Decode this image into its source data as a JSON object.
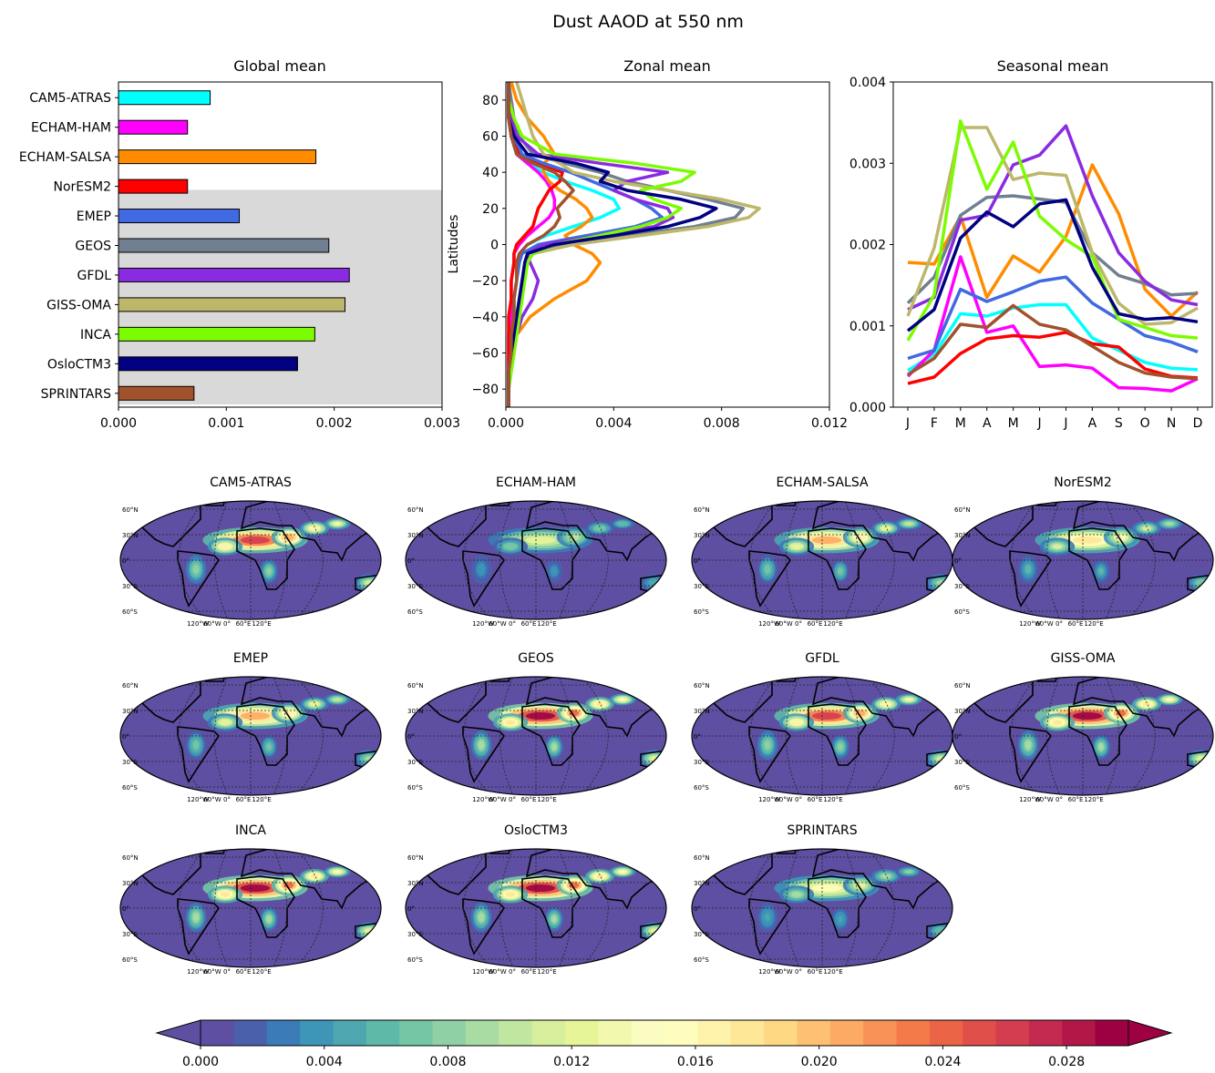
{
  "figure": {
    "title": "Dust AAOD at 550 nm"
  },
  "chart_data": [
    {
      "id": "global",
      "type": "bar",
      "orientation": "horizontal",
      "title": "Global mean",
      "xlim": [
        0,
        0.003
      ],
      "xticks": [
        "0.000",
        "0.001",
        "0.002",
        "0.003"
      ],
      "shaded_categories": [
        "EMEP",
        "GEOS",
        "GFDL",
        "GISS-OMA",
        "INCA",
        "OsloCTM3",
        "SPRINTARS"
      ],
      "categories": [
        "CAM5-ATRAS",
        "ECHAM-HAM",
        "ECHAM-SALSA",
        "NorESM2",
        "EMEP",
        "GEOS",
        "GFDL",
        "GISS-OMA",
        "INCA",
        "OsloCTM3",
        "SPRINTARS"
      ],
      "values": [
        0.00085,
        0.00064,
        0.00183,
        0.00064,
        0.00112,
        0.00195,
        0.00214,
        0.0021,
        0.00182,
        0.00166,
        0.0007
      ],
      "colors": [
        "#00ffff",
        "#ff00ff",
        "#ff8c00",
        "#ff0000",
        "#4169e1",
        "#708090",
        "#8a2be2",
        "#bdb76b",
        "#7cfc00",
        "#000080",
        "#a0522d"
      ]
    },
    {
      "id": "zonal",
      "type": "line",
      "title": "Zonal mean",
      "ylabel": "Latitudes",
      "xlim": [
        0,
        0.012
      ],
      "ylim": [
        -90,
        90
      ],
      "xticks": [
        "0.000",
        "0.004",
        "0.008",
        "0.012"
      ],
      "yticks": [
        "80",
        "60",
        "40",
        "20",
        "0",
        "−20",
        "−40",
        "−60",
        "−80"
      ],
      "lat": [
        -90,
        -80,
        -70,
        -60,
        -50,
        -40,
        -30,
        -20,
        -10,
        -5,
        0,
        5,
        10,
        15,
        20,
        25,
        30,
        35,
        40,
        45,
        50,
        60,
        70,
        80,
        90
      ],
      "series": [
        {
          "model": "CAM5-ATRAS",
          "color": "#00ffff",
          "values": [
            0.0001,
            0.0001,
            0.0001,
            0.0002,
            0.0002,
            0.0003,
            0.0003,
            0.0004,
            0.0004,
            0.0005,
            0.0008,
            0.0015,
            0.0025,
            0.0035,
            0.0042,
            0.004,
            0.0032,
            0.0022,
            0.0014,
            0.0008,
            0.0004,
            0.0002,
            0.0001,
            0.0001,
            0.0001
          ]
        },
        {
          "model": "ECHAM-HAM",
          "color": "#ff00ff",
          "values": [
            0.0001,
            0.0001,
            0.0001,
            0.0001,
            0.0001,
            0.0002,
            0.0002,
            0.0002,
            0.0003,
            0.0003,
            0.0005,
            0.0008,
            0.0012,
            0.0016,
            0.0018,
            0.0018,
            0.0017,
            0.0015,
            0.0012,
            0.0008,
            0.0004,
            0.0002,
            0.0001,
            0.0001,
            0.0001
          ]
        },
        {
          "model": "ECHAM-SALSA",
          "color": "#ff8c00",
          "values": [
            0.0001,
            0.0001,
            0.0001,
            0.0002,
            0.0004,
            0.0009,
            0.0018,
            0.003,
            0.0035,
            0.0032,
            0.0025,
            0.0022,
            0.0028,
            0.0032,
            0.003,
            0.0026,
            0.002,
            0.0016,
            0.0014,
            0.0014,
            0.0018,
            0.0014,
            0.0008,
            0.0004,
            0.0002
          ]
        },
        {
          "model": "NorESM2",
          "color": "#ff0000",
          "values": [
            0.0001,
            0.0001,
            0.0001,
            0.0001,
            0.0001,
            0.0001,
            0.0002,
            0.0002,
            0.0003,
            0.0003,
            0.0004,
            0.0007,
            0.001,
            0.0011,
            0.0012,
            0.0014,
            0.0016,
            0.002,
            0.0021,
            0.0012,
            0.0005,
            0.0002,
            0.0001,
            0.0001,
            0.0001
          ]
        },
        {
          "model": "EMEP",
          "color": "#4169e1",
          "values": [
            0.0001,
            0.0001,
            0.0001,
            0.0002,
            0.0002,
            0.0003,
            0.0003,
            0.0004,
            0.0005,
            0.0006,
            0.0012,
            0.003,
            0.0048,
            0.0058,
            0.0054,
            0.0048,
            0.004,
            0.0032,
            0.0024,
            0.0014,
            0.0006,
            0.0003,
            0.0001,
            0.0001,
            0.0001
          ]
        },
        {
          "model": "GEOS",
          "color": "#708090",
          "values": [
            0.0001,
            0.0001,
            0.0001,
            0.0002,
            0.0003,
            0.0004,
            0.0005,
            0.0006,
            0.0008,
            0.001,
            0.002,
            0.0045,
            0.007,
            0.0085,
            0.0088,
            0.0075,
            0.006,
            0.0045,
            0.0035,
            0.0022,
            0.001,
            0.0005,
            0.0003,
            0.0002,
            0.0001
          ]
        },
        {
          "model": "GFDL",
          "color": "#8a2be2",
          "values": [
            0.0001,
            0.0001,
            0.0002,
            0.0003,
            0.0004,
            0.0006,
            0.001,
            0.0012,
            0.0009,
            0.0008,
            0.0014,
            0.0035,
            0.0055,
            0.0062,
            0.006,
            0.0048,
            0.004,
            0.0045,
            0.006,
            0.0035,
            0.0012,
            0.0004,
            0.0002,
            0.0001,
            0.0001
          ]
        },
        {
          "model": "GISS-OMA",
          "color": "#bdb76b",
          "values": [
            0.0001,
            0.0001,
            0.0002,
            0.0003,
            0.0004,
            0.0005,
            0.0006,
            0.0007,
            0.0008,
            0.001,
            0.0025,
            0.005,
            0.0075,
            0.009,
            0.0094,
            0.008,
            0.006,
            0.004,
            0.0025,
            0.002,
            0.0014,
            0.001,
            0.0008,
            0.0006,
            0.0004
          ]
        },
        {
          "model": "INCA",
          "color": "#7cfc00",
          "values": [
            0.0001,
            0.0001,
            0.0002,
            0.0003,
            0.0004,
            0.0005,
            0.0006,
            0.0007,
            0.0008,
            0.001,
            0.0018,
            0.0035,
            0.005,
            0.006,
            0.0065,
            0.0055,
            0.005,
            0.0065,
            0.007,
            0.0048,
            0.0018,
            0.0006,
            0.0003,
            0.0001,
            0.0001
          ]
        },
        {
          "model": "OsloCTM3",
          "color": "#000080",
          "values": [
            0.0001,
            0.0001,
            0.0001,
            0.0002,
            0.0003,
            0.0004,
            0.0005,
            0.0006,
            0.0007,
            0.0008,
            0.0018,
            0.004,
            0.006,
            0.0072,
            0.0078,
            0.0065,
            0.0045,
            0.0035,
            0.0038,
            0.0026,
            0.0008,
            0.0003,
            0.0001,
            0.0001,
            0.0001
          ]
        },
        {
          "model": "SPRINTARS",
          "color": "#a0522d",
          "values": [
            0.0001,
            0.0001,
            0.0001,
            0.0002,
            0.0002,
            0.0003,
            0.0003,
            0.0004,
            0.0004,
            0.0005,
            0.0008,
            0.0014,
            0.0018,
            0.002,
            0.0019,
            0.0022,
            0.0025,
            0.0022,
            0.0018,
            0.001,
            0.0004,
            0.0002,
            0.0001,
            0.0001,
            0.0001
          ]
        }
      ]
    },
    {
      "id": "seasonal",
      "type": "line",
      "title": "Seasonal mean",
      "ylim": [
        0,
        0.004
      ],
      "yticks": [
        "0.000",
        "0.001",
        "0.002",
        "0.003",
        "0.004"
      ],
      "categories": [
        "J",
        "F",
        "M",
        "A",
        "M",
        "J",
        "J",
        "A",
        "S",
        "O",
        "N",
        "D"
      ],
      "series": [
        {
          "model": "CAM5-ATRAS",
          "color": "#00ffff",
          "values": [
            0.00045,
            0.00065,
            0.00115,
            0.00112,
            0.00122,
            0.00126,
            0.00126,
            0.00085,
            0.0007,
            0.00055,
            0.00048,
            0.00046
          ]
        },
        {
          "model": "ECHAM-HAM",
          "color": "#ff00ff",
          "values": [
            0.00038,
            0.0007,
            0.00185,
            0.00092,
            0.001,
            0.0005,
            0.00052,
            0.00048,
            0.00024,
            0.00023,
            0.0002,
            0.00035
          ]
        },
        {
          "model": "ECHAM-SALSA",
          "color": "#ff8c00",
          "values": [
            0.00178,
            0.00176,
            0.00235,
            0.00135,
            0.00186,
            0.00166,
            0.0021,
            0.00298,
            0.00238,
            0.00145,
            0.00112,
            0.00142
          ]
        },
        {
          "model": "NorESM2",
          "color": "#ff0000",
          "values": [
            0.00029,
            0.00037,
            0.00066,
            0.00084,
            0.00088,
            0.00086,
            0.00092,
            0.00078,
            0.00074,
            0.00047,
            0.00038,
            0.00036
          ]
        },
        {
          "model": "EMEP",
          "color": "#4169e1",
          "values": [
            0.0006,
            0.0007,
            0.00145,
            0.0013,
            0.00142,
            0.00155,
            0.0016,
            0.00128,
            0.00108,
            0.00088,
            0.0008,
            0.00068
          ]
        },
        {
          "model": "GEOS",
          "color": "#708090",
          "values": [
            0.00128,
            0.0016,
            0.00236,
            0.00258,
            0.0026,
            0.00256,
            0.00252,
            0.0019,
            0.00162,
            0.00152,
            0.00138,
            0.0014
          ]
        },
        {
          "model": "GFDL",
          "color": "#8a2be2",
          "values": [
            0.0012,
            0.00135,
            0.0023,
            0.00236,
            0.00298,
            0.0031,
            0.00346,
            0.0026,
            0.0019,
            0.00155,
            0.00132,
            0.00126
          ]
        },
        {
          "model": "GISS-OMA",
          "color": "#bdb76b",
          "values": [
            0.00112,
            0.00196,
            0.00344,
            0.00344,
            0.0028,
            0.00288,
            0.00285,
            0.0019,
            0.00128,
            0.00102,
            0.00104,
            0.00122
          ]
        },
        {
          "model": "INCA",
          "color": "#7cfc00",
          "values": [
            0.00082,
            0.00138,
            0.00352,
            0.00268,
            0.00326,
            0.00235,
            0.00206,
            0.00185,
            0.00108,
            0.00098,
            0.00088,
            0.00085
          ]
        },
        {
          "model": "OsloCTM3",
          "color": "#000080",
          "values": [
            0.00094,
            0.0012,
            0.00208,
            0.0024,
            0.00222,
            0.0025,
            0.00255,
            0.00172,
            0.00115,
            0.00108,
            0.0011,
            0.00105
          ]
        },
        {
          "model": "SPRINTARS",
          "color": "#a0522d",
          "values": [
            0.0004,
            0.0006,
            0.00102,
            0.00098,
            0.00125,
            0.00102,
            0.00095,
            0.00075,
            0.00055,
            0.00042,
            0.00037,
            0.00035
          ]
        }
      ]
    },
    {
      "id": "maps",
      "type": "heatmap",
      "projection": "Robinson",
      "panels": [
        "CAM5-ATRAS",
        "ECHAM-HAM",
        "ECHAM-SALSA",
        "NorESM2",
        "EMEP",
        "GEOS",
        "GFDL",
        "GISS-OMA",
        "INCA",
        "OsloCTM3",
        "SPRINTARS"
      ],
      "lat_labels": [
        "60°N",
        "30°N",
        "0°",
        "30°S",
        "60°S"
      ],
      "lon_labels": [
        "120°W",
        "60°W",
        "0°",
        "60°E",
        "120°E"
      ],
      "intensity": [
        0.9,
        0.4,
        0.7,
        0.6,
        0.7,
        1.0,
        0.9,
        1.0,
        1.0,
        1.0,
        0.5
      ],
      "colorbar": {
        "min": 0,
        "max": 0.03,
        "step": 0.001,
        "extend": "both",
        "ticks": [
          "0.000",
          "0.004",
          "0.008",
          "0.012",
          "0.016",
          "0.020",
          "0.024",
          "0.028"
        ],
        "colors": [
          "#5e4fa2",
          "#4a60ab",
          "#3a7bb8",
          "#3d95b8",
          "#4da6b0",
          "#5fb9a8",
          "#75c6a5",
          "#8fd1a4",
          "#a9dca3",
          "#c1e6a0",
          "#d7ef9d",
          "#e6f598",
          "#f2f8ae",
          "#fafcc2",
          "#fffdbe",
          "#fff3ab",
          "#fee797",
          "#fed882",
          "#fdc171",
          "#fdab63",
          "#f99256",
          "#f57a4a",
          "#ec6446",
          "#e04f4a",
          "#d43d4f",
          "#c42a4f",
          "#b21748",
          "#9e0142"
        ]
      }
    }
  ]
}
